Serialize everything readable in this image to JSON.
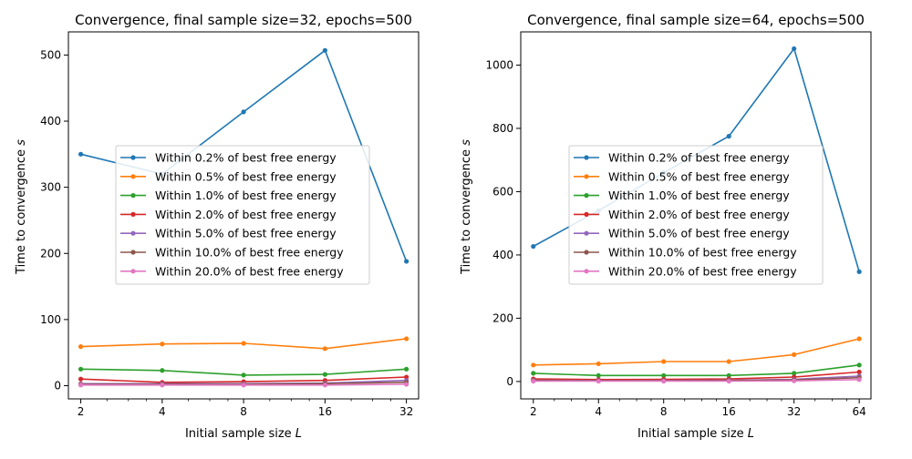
{
  "chart_data": [
    {
      "type": "line",
      "title": "Convergence, final sample size=32, epochs=500",
      "xlabel": "Initial sample size",
      "xlabel_var": "L",
      "ylabel": "Time to convergence",
      "ylabel_var": "s",
      "x_scale": "log2",
      "x": [
        2,
        4,
        8,
        16,
        32
      ],
      "xticks": [
        "2",
        "4",
        "8",
        "16",
        "32"
      ],
      "xlim": [
        1.8,
        35.5
      ],
      "ylim": [
        -20,
        535
      ],
      "yticks": [
        0,
        100,
        200,
        300,
        400,
        500
      ],
      "grid": false,
      "legend_position": "center",
      "series": [
        {
          "name": "Within 0.2% of best free energy",
          "color": "#1f77b4",
          "values": [
            350,
            320,
            414,
            507,
            188
          ]
        },
        {
          "name": "Within 0.5% of best free energy",
          "color": "#ff7f0e",
          "values": [
            59,
            63,
            64,
            56,
            71
          ]
        },
        {
          "name": "Within 1.0% of best free energy",
          "color": "#2ca02c",
          "values": [
            25,
            23,
            16,
            17,
            25
          ]
        },
        {
          "name": "Within 2.0% of best free energy",
          "color": "#d62728",
          "values": [
            10,
            5,
            6,
            8,
            13
          ]
        },
        {
          "name": "Within 5.0% of best free energy",
          "color": "#9467bd",
          "values": [
            3,
            3,
            3,
            4,
            8
          ]
        },
        {
          "name": "Within 10.0% of best free energy",
          "color": "#8c564b",
          "values": [
            2,
            2,
            2,
            3,
            5
          ]
        },
        {
          "name": "Within 20.0% of best free energy",
          "color": "#e377c2",
          "values": [
            1,
            1,
            1,
            1,
            2
          ]
        }
      ]
    },
    {
      "type": "line",
      "title": "Convergence, final sample size=64, epochs=500",
      "xlabel": "Initial sample size",
      "xlabel_var": "L",
      "ylabel": "Time to convergence",
      "ylabel_var": "s",
      "x_scale": "log2",
      "x": [
        2,
        4,
        8,
        16,
        32,
        64
      ],
      "xticks": [
        "2",
        "4",
        "8",
        "16",
        "32",
        "64"
      ],
      "xlim": [
        1.75,
        72.5
      ],
      "ylim": [
        -55,
        1105
      ],
      "yticks": [
        0,
        200,
        400,
        600,
        800,
        1000
      ],
      "grid": false,
      "legend_position": "center",
      "series": [
        {
          "name": "Within 0.2% of best free energy",
          "color": "#1f77b4",
          "values": [
            427,
            540,
            660,
            775,
            1052,
            347
          ]
        },
        {
          "name": "Within 0.5% of best free energy",
          "color": "#ff7f0e",
          "values": [
            52,
            56,
            63,
            63,
            85,
            135
          ]
        },
        {
          "name": "Within 1.0% of best free energy",
          "color": "#2ca02c",
          "values": [
            26,
            19,
            19,
            19,
            26,
            52
          ]
        },
        {
          "name": "Within 2.0% of best free energy",
          "color": "#d62728",
          "values": [
            8,
            6,
            7,
            8,
            14,
            30
          ]
        },
        {
          "name": "Within 5.0% of best free energy",
          "color": "#9467bd",
          "values": [
            4,
            3,
            3,
            4,
            7,
            17
          ]
        },
        {
          "name": "Within 10.0% of best free energy",
          "color": "#8c564b",
          "values": [
            3,
            2,
            2,
            3,
            5,
            12
          ]
        },
        {
          "name": "Within 20.0% of best free energy",
          "color": "#e377c2",
          "values": [
            1,
            1,
            1,
            1,
            2,
            6
          ]
        }
      ]
    }
  ]
}
